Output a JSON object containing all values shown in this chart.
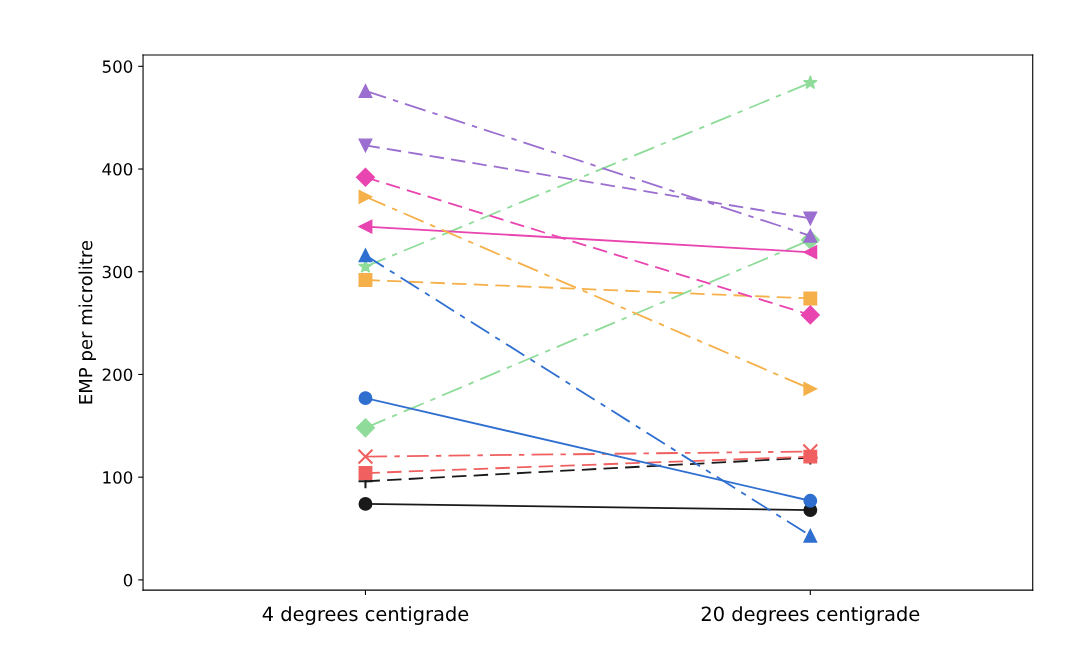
{
  "chart_data": {
    "type": "line",
    "ylabel": "EMP per microlitre",
    "categories": [
      "4 degrees centigrade",
      "20 degrees centigrade"
    ],
    "ylim": [
      -10,
      511
    ],
    "yticks": [
      0,
      100,
      200,
      300,
      400,
      500
    ],
    "grid": false,
    "series": [
      {
        "color": "#9b6fd0",
        "values": [
          476,
          335
        ],
        "marker": "triangle",
        "line_style": "dashdot"
      },
      {
        "color": "#9b6fd0",
        "values": [
          423,
          352
        ],
        "marker": "triangle_down",
        "line_style": "dashed"
      },
      {
        "color": "#e845b0",
        "values": [
          392,
          258
        ],
        "marker": "diamond",
        "line_style": "dashed"
      },
      {
        "color": "#f5b04a",
        "values": [
          373,
          186
        ],
        "marker": "triangle_right",
        "line_style": "dashdot"
      },
      {
        "color": "#e845b0",
        "values": [
          344,
          319
        ],
        "marker": "triangle_left",
        "line_style": "solid"
      },
      {
        "color": "#2f6fd0",
        "values": [
          316,
          43
        ],
        "marker": "triangle",
        "line_style": "dashdot"
      },
      {
        "color": "#8fdc9a",
        "values": [
          305,
          484
        ],
        "marker": "star",
        "line_style": "dashdot"
      },
      {
        "color": "#f5b04a",
        "values": [
          292,
          274
        ],
        "marker": "square",
        "line_style": "dashed"
      },
      {
        "color": "#2f6fd0",
        "values": [
          177,
          77
        ],
        "marker": "circle",
        "line_style": "solid"
      },
      {
        "color": "#8fdc9a",
        "values": [
          148,
          331
        ],
        "marker": "diamond",
        "line_style": "dashdot"
      },
      {
        "color": "#f06060",
        "values": [
          120,
          125
        ],
        "marker": "cross",
        "line_style": "dashdot"
      },
      {
        "color": "#f06060",
        "values": [
          104,
          120
        ],
        "marker": "square",
        "line_style": "dashed"
      },
      {
        "color": "#1a1a1a",
        "values": [
          96,
          119
        ],
        "marker": "plus",
        "line_style": "dashed"
      },
      {
        "color": "#1a1a1a",
        "values": [
          74,
          68
        ],
        "marker": "circle",
        "line_style": "solid"
      }
    ]
  }
}
